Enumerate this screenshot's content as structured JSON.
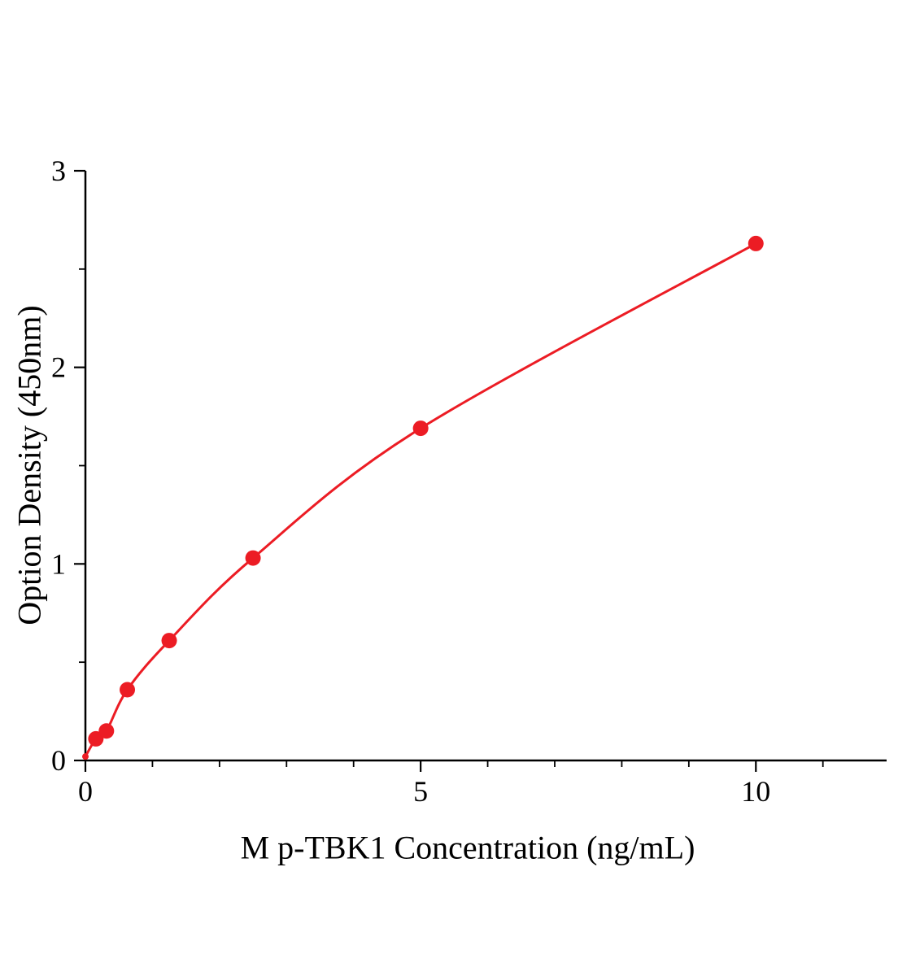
{
  "chart_data": {
    "type": "line",
    "title": "",
    "xlabel": "M p-TBK1 Concentration (ng/mL)",
    "ylabel": "Option Density (450nm)",
    "x": [
      0,
      0.156,
      0.313,
      0.625,
      1.25,
      2.5,
      5,
      10
    ],
    "y": [
      0.02,
      0.11,
      0.15,
      0.36,
      0.61,
      1.03,
      1.69,
      2.63
    ],
    "xlim": [
      0,
      11.95
    ],
    "ylim": [
      0,
      3
    ],
    "x_major_ticks": [
      0,
      5,
      10
    ],
    "x_minor_step": 1,
    "y_major_ticks": [
      0,
      1,
      2,
      3
    ],
    "y_minor_step": 0.5,
    "grid": false,
    "legend": "none",
    "line_color": "#ec1c24",
    "marker_color": "#ec1c24",
    "axis_color": "#000000",
    "marker_shape": "circle"
  }
}
